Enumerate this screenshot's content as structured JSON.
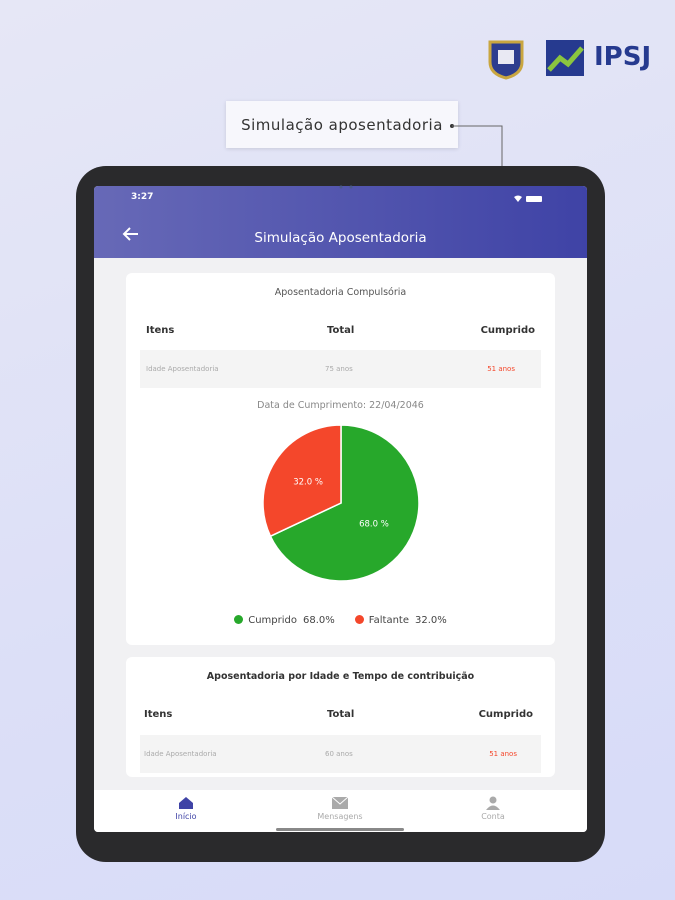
{
  "header": {
    "tag": "Simulação aposentadoria",
    "brand": "IPSJ"
  },
  "status_bar": {
    "time": "3:27"
  },
  "app_bar": {
    "title": "Simulação Aposentadoria"
  },
  "cards": [
    {
      "title": "Aposentadoria Compulsória",
      "columns": [
        "Itens",
        "Total",
        "Cumprido"
      ],
      "rows": [
        [
          "Idade Aposentadoria",
          "75 anos",
          "51 anos"
        ]
      ],
      "date": "Data de Cumprimento: 22/04/2046"
    },
    {
      "title": "Aposentadoria por Idade e Tempo de contribuição",
      "columns": [
        "Itens",
        "Total",
        "Cumprido"
      ],
      "rows": [
        [
          "Idade Aposentadoria",
          "60 anos",
          "51 anos"
        ]
      ]
    }
  ],
  "chart_data": {
    "type": "pie",
    "categories": [
      "Cumprido",
      "Faltante"
    ],
    "values": [
      68.0,
      32.0
    ],
    "value_labels": [
      "68.0 %",
      "32.0 %"
    ],
    "legend_value_labels": [
      "68.0%",
      "32.0%"
    ],
    "colors": [
      "#27a82b",
      "#f4472b"
    ]
  },
  "bottom_nav": [
    "Início",
    "Mensagens",
    "Conta"
  ]
}
